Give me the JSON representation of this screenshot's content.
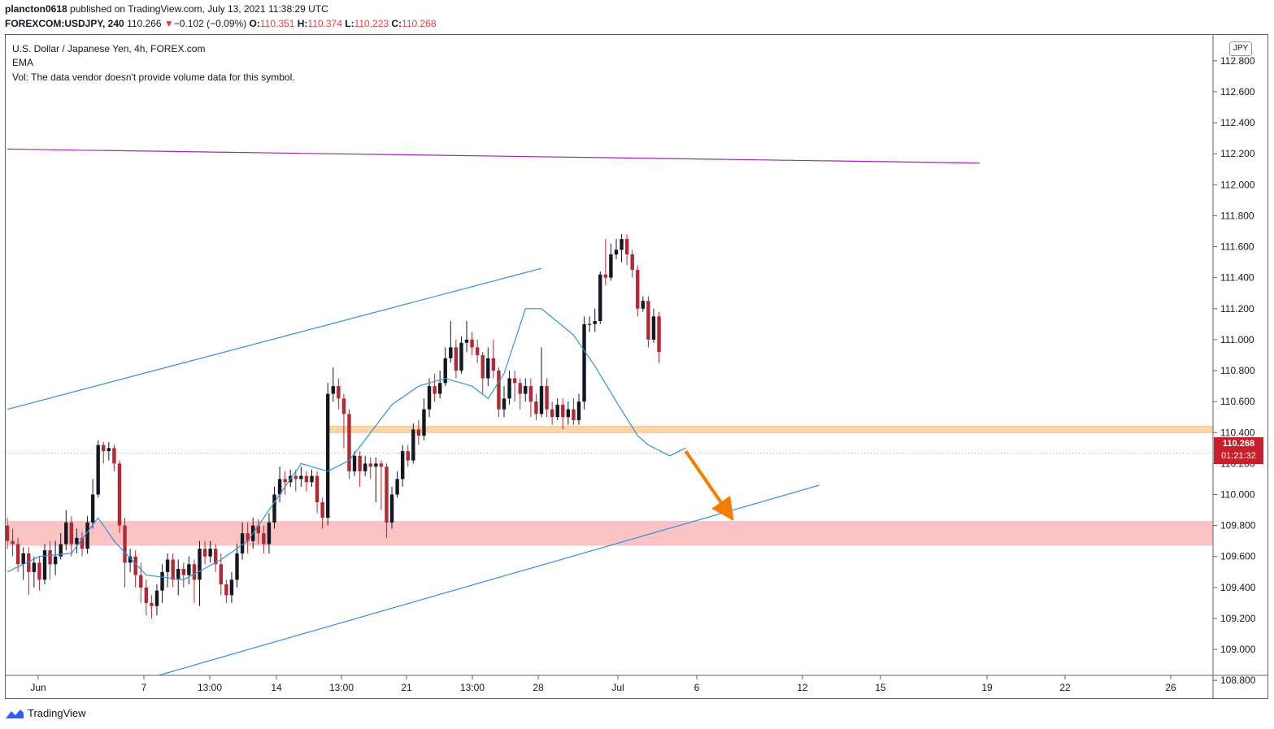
{
  "header": {
    "author": "plancton0618",
    "published_text": "published on TradingView.com, July 13, 2021 11:38:29 UTC",
    "symbol": "FOREXCOM:USDJPY, 240",
    "last": "110.266",
    "change_arrow": "▼",
    "change": "−0.102 (−0.09%)",
    "o_label": "O:",
    "o_value": "110.351",
    "h_label": "H:",
    "h_value": "110.374",
    "l_label": "L:",
    "l_value": "110.223",
    "c_label": "C:",
    "c_value": "110.268"
  },
  "legend": {
    "title": "U.S. Dollar / Japanese Yen, 4h, FOREX.com",
    "ema": "EMA",
    "vol": "Vol: The data vendor doesn't provide volume data for this symbol."
  },
  "currency_badge": "JPY",
  "price_label": {
    "price": "110.268",
    "countdown": "01:21:32"
  },
  "footer": {
    "brand": "TradingView"
  },
  "colors": {
    "up_candle": "#131722",
    "down_candle": "#b22833",
    "ema": "#2e95d8",
    "channel": "#2e8ee8",
    "resistance_line": "#9c27b0",
    "supply_zone": "#f8cf9c",
    "demand_zone": "#fbb8bb",
    "arrow": "#f57c00",
    "price_label": "#c8202b"
  },
  "chart_data": {
    "type": "candlestick",
    "symbol": "USDJPY",
    "timeframe": "4h",
    "y_axis": {
      "ticks": [
        "108.800",
        "109.000",
        "109.200",
        "109.400",
        "109.600",
        "109.800",
        "110.000",
        "110.200",
        "110.400",
        "110.600",
        "110.800",
        "111.000",
        "111.200",
        "111.400",
        "111.600",
        "111.800",
        "112.000",
        "112.200",
        "112.400",
        "112.600",
        "112.800"
      ],
      "range": [
        108.75,
        112.85
      ]
    },
    "x_axis": {
      "ticks": [
        "Jun",
        "7",
        "13:00",
        "14",
        "13:00",
        "21",
        "13:00",
        "28",
        "Jul",
        "6",
        "12",
        "15",
        "19",
        "22",
        "26"
      ],
      "range_bars": [
        0,
        182
      ]
    },
    "last_price": 110.268,
    "zones": [
      {
        "name": "resistance zone",
        "from": 110.4,
        "to": 110.44,
        "start_bar": 60
      },
      {
        "name": "support zone",
        "from": 109.67,
        "to": 109.83,
        "start_bar": 0
      }
    ],
    "trendlines": [
      {
        "name": "upper channel",
        "from": [
          0,
          110.55
        ],
        "to": [
          100,
          111.46
        ]
      },
      {
        "name": "lower channel",
        "from": [
          22,
          108.77
        ],
        "to": [
          152,
          110.06
        ]
      },
      {
        "name": "resistance",
        "from": [
          0,
          112.23
        ],
        "to": [
          182,
          112.14
        ]
      }
    ],
    "arrow": {
      "from": [
        127,
        110.28
      ],
      "to": [
        136,
        109.83
      ],
      "direction": "down"
    },
    "ema_points": [
      [
        0,
        109.5
      ],
      [
        6,
        109.6
      ],
      [
        12,
        109.62
      ],
      [
        17,
        109.85
      ],
      [
        20,
        109.7
      ],
      [
        26,
        109.48
      ],
      [
        33,
        109.45
      ],
      [
        40,
        109.58
      ],
      [
        45,
        109.7
      ],
      [
        52,
        110.05
      ],
      [
        55,
        110.2
      ],
      [
        60,
        110.15
      ],
      [
        64,
        110.22
      ],
      [
        68,
        110.4
      ],
      [
        72,
        110.58
      ],
      [
        77,
        110.7
      ],
      [
        82,
        110.75
      ],
      [
        87,
        110.7
      ],
      [
        90,
        110.62
      ],
      [
        93,
        110.78
      ],
      [
        97,
        111.2
      ],
      [
        100,
        111.2
      ],
      [
        106,
        111.03
      ],
      [
        110,
        110.83
      ],
      [
        114,
        110.6
      ],
      [
        118,
        110.38
      ],
      [
        120,
        110.32
      ],
      [
        124,
        110.25
      ],
      [
        127,
        110.3
      ]
    ],
    "candles": [
      [
        0,
        109.8,
        109.7,
        109.85,
        109.65
      ],
      [
        1,
        109.7,
        109.68,
        109.78,
        109.6
      ],
      [
        2,
        109.68,
        109.55,
        109.72,
        109.5
      ],
      [
        3,
        109.55,
        109.62,
        109.66,
        109.45
      ],
      [
        4,
        109.62,
        109.5,
        109.66,
        109.35
      ],
      [
        5,
        109.5,
        109.56,
        109.6,
        109.4
      ],
      [
        6,
        109.56,
        109.45,
        109.6,
        109.38
      ],
      [
        7,
        109.45,
        109.64,
        109.68,
        109.42
      ],
      [
        8,
        109.64,
        109.55,
        109.7,
        109.45
      ],
      [
        9,
        109.55,
        109.6,
        109.7,
        109.48
      ],
      [
        10,
        109.6,
        109.68,
        109.75,
        109.58
      ],
      [
        11,
        109.68,
        109.82,
        109.9,
        109.64
      ],
      [
        12,
        109.82,
        109.68,
        109.86,
        109.6
      ],
      [
        13,
        109.68,
        109.72,
        109.78,
        109.62
      ],
      [
        14,
        109.72,
        109.65,
        109.76,
        109.6
      ],
      [
        15,
        109.65,
        109.82,
        109.86,
        109.62
      ],
      [
        16,
        109.82,
        110.0,
        110.1,
        109.78
      ],
      [
        17,
        110.0,
        110.32,
        110.35,
        109.98
      ],
      [
        18,
        110.32,
        110.28,
        110.34,
        110.2
      ],
      [
        19,
        110.28,
        110.3,
        110.34,
        110.22
      ],
      [
        20,
        110.3,
        110.2,
        110.32,
        110.15
      ],
      [
        21,
        110.2,
        109.8,
        110.22,
        109.75
      ],
      [
        22,
        109.8,
        109.56,
        109.85,
        109.4
      ],
      [
        23,
        109.56,
        109.6,
        109.65,
        109.5
      ],
      [
        24,
        109.6,
        109.48,
        109.64,
        109.4
      ],
      [
        25,
        109.48,
        109.4,
        109.56,
        109.3
      ],
      [
        26,
        109.4,
        109.3,
        109.45,
        109.22
      ],
      [
        27,
        109.3,
        109.28,
        109.35,
        109.2
      ],
      [
        28,
        109.28,
        109.38,
        109.42,
        109.22
      ],
      [
        29,
        109.38,
        109.5,
        109.55,
        109.3
      ],
      [
        30,
        109.5,
        109.58,
        109.62,
        109.4
      ],
      [
        31,
        109.58,
        109.45,
        109.62,
        109.4
      ],
      [
        32,
        109.45,
        109.52,
        109.58,
        109.35
      ],
      [
        33,
        109.52,
        109.48,
        109.56,
        109.4
      ],
      [
        34,
        109.48,
        109.55,
        109.6,
        109.42
      ],
      [
        35,
        109.55,
        109.45,
        109.58,
        109.3
      ],
      [
        36,
        109.45,
        109.65,
        109.7,
        109.28
      ],
      [
        37,
        109.65,
        109.6,
        109.7,
        109.55
      ],
      [
        38,
        109.6,
        109.65,
        109.7,
        109.56
      ],
      [
        39,
        109.65,
        109.55,
        109.68,
        109.5
      ],
      [
        40,
        109.55,
        109.42,
        109.62,
        109.35
      ],
      [
        41,
        109.42,
        109.35,
        109.45,
        109.3
      ],
      [
        42,
        109.35,
        109.45,
        109.5,
        109.3
      ],
      [
        43,
        109.45,
        109.62,
        109.68,
        109.4
      ],
      [
        44,
        109.62,
        109.75,
        109.82,
        109.58
      ],
      [
        45,
        109.75,
        109.7,
        109.82,
        109.62
      ],
      [
        46,
        109.7,
        109.8,
        109.85,
        109.65
      ],
      [
        47,
        109.8,
        109.75,
        109.84,
        109.68
      ],
      [
        48,
        109.75,
        109.68,
        109.8,
        109.62
      ],
      [
        49,
        109.68,
        109.82,
        109.88,
        109.62
      ],
      [
        50,
        109.82,
        110.0,
        110.05,
        109.78
      ],
      [
        51,
        110.0,
        110.1,
        110.18,
        109.95
      ],
      [
        52,
        110.1,
        110.08,
        110.15,
        110.0
      ],
      [
        53,
        110.08,
        110.12,
        110.16,
        110.05
      ],
      [
        54,
        110.12,
        110.1,
        110.16,
        110.02
      ],
      [
        55,
        110.1,
        110.12,
        110.18,
        110.05
      ],
      [
        56,
        110.12,
        110.08,
        110.15,
        110.02
      ],
      [
        57,
        110.08,
        110.12,
        110.16,
        110.05
      ],
      [
        58,
        110.12,
        109.95,
        110.15,
        109.88
      ],
      [
        59,
        109.95,
        109.85,
        109.98,
        109.78
      ],
      [
        60,
        109.85,
        110.65,
        110.72,
        109.8
      ],
      [
        61,
        110.65,
        110.7,
        110.82,
        110.6
      ],
      [
        62,
        110.7,
        110.62,
        110.75,
        110.55
      ],
      [
        63,
        110.62,
        110.52,
        110.65,
        110.3
      ],
      [
        64,
        110.52,
        110.15,
        110.55,
        110.1
      ],
      [
        65,
        110.15,
        110.25,
        110.28,
        110.12
      ],
      [
        66,
        110.25,
        110.15,
        110.28,
        110.05
      ],
      [
        67,
        110.15,
        110.2,
        110.25,
        110.12
      ],
      [
        68,
        110.2,
        110.18,
        110.24,
        110.1
      ],
      [
        69,
        110.18,
        110.2,
        110.24,
        109.95
      ],
      [
        70,
        110.2,
        110.18,
        110.22,
        109.9
      ],
      [
        71,
        110.18,
        109.82,
        110.2,
        109.72
      ],
      [
        72,
        109.82,
        110.0,
        110.05,
        109.78
      ],
      [
        73,
        110.0,
        110.1,
        110.15,
        109.98
      ],
      [
        74,
        110.1,
        110.28,
        110.32,
        110.05
      ],
      [
        75,
        110.28,
        110.22,
        110.32,
        110.18
      ],
      [
        76,
        110.22,
        110.42,
        110.46,
        110.2
      ],
      [
        77,
        110.42,
        110.38,
        110.48,
        110.32
      ],
      [
        78,
        110.38,
        110.55,
        110.62,
        110.35
      ],
      [
        79,
        110.55,
        110.7,
        110.75,
        110.5
      ],
      [
        80,
        110.7,
        110.65,
        110.78,
        110.6
      ],
      [
        81,
        110.65,
        110.72,
        110.8,
        110.62
      ],
      [
        82,
        110.72,
        110.88,
        110.95,
        110.7
      ],
      [
        83,
        110.88,
        110.95,
        111.12,
        110.85
      ],
      [
        84,
        110.95,
        110.8,
        111.0,
        110.75
      ],
      [
        85,
        110.8,
        110.98,
        111.02,
        110.78
      ],
      [
        86,
        110.98,
        111.0,
        111.12,
        110.92
      ],
      [
        87,
        111.0,
        110.95,
        111.05,
        110.9
      ],
      [
        88,
        110.95,
        110.9,
        111.0,
        110.85
      ],
      [
        89,
        110.9,
        110.75,
        110.92,
        110.65
      ],
      [
        90,
        110.75,
        110.88,
        110.95,
        110.7
      ],
      [
        91,
        110.88,
        110.8,
        111.0,
        110.75
      ],
      [
        92,
        110.8,
        110.55,
        110.82,
        110.5
      ],
      [
        93,
        110.55,
        110.62,
        110.7,
        110.5
      ],
      [
        94,
        110.62,
        110.75,
        110.8,
        110.58
      ],
      [
        95,
        110.75,
        110.72,
        110.8,
        110.6
      ],
      [
        96,
        110.72,
        110.65,
        110.75,
        110.55
      ],
      [
        97,
        110.65,
        110.7,
        110.75,
        110.6
      ],
      [
        98,
        110.7,
        110.6,
        110.75,
        110.5
      ],
      [
        99,
        110.6,
        110.52,
        110.65,
        110.48
      ],
      [
        100,
        110.52,
        110.7,
        110.95,
        110.5
      ],
      [
        101,
        110.7,
        110.55,
        110.75,
        110.5
      ],
      [
        102,
        110.55,
        110.5,
        110.6,
        110.45
      ],
      [
        103,
        110.5,
        110.58,
        110.62,
        110.48
      ],
      [
        104,
        110.58,
        110.5,
        110.62,
        110.42
      ],
      [
        105,
        110.5,
        110.55,
        110.6,
        110.45
      ],
      [
        106,
        110.55,
        110.48,
        110.62,
        110.45
      ],
      [
        107,
        110.48,
        110.6,
        110.65,
        110.45
      ],
      [
        108,
        110.6,
        111.1,
        111.15,
        110.55
      ],
      [
        109,
        111.1,
        111.1,
        111.15,
        111.05
      ],
      [
        110,
        111.1,
        111.12,
        111.2,
        111.05
      ],
      [
        111,
        111.12,
        111.42,
        111.44,
        111.1
      ],
      [
        112,
        111.42,
        111.4,
        111.65,
        111.35
      ],
      [
        113,
        111.4,
        111.55,
        111.62,
        111.38
      ],
      [
        114,
        111.55,
        111.58,
        111.65,
        111.52
      ],
      [
        115,
        111.58,
        111.65,
        111.68,
        111.5
      ],
      [
        116,
        111.65,
        111.55,
        111.68,
        111.48
      ],
      [
        117,
        111.55,
        111.45,
        111.58,
        111.4
      ],
      [
        118,
        111.45,
        111.2,
        111.48,
        111.15
      ],
      [
        119,
        111.2,
        111.25,
        111.28,
        111.18
      ],
      [
        120,
        111.25,
        111.0,
        111.28,
        110.95
      ],
      [
        121,
        111.0,
        111.15,
        111.2,
        110.98
      ],
      [
        122,
        111.15,
        110.92,
        111.18,
        110.85
      ]
    ]
  }
}
